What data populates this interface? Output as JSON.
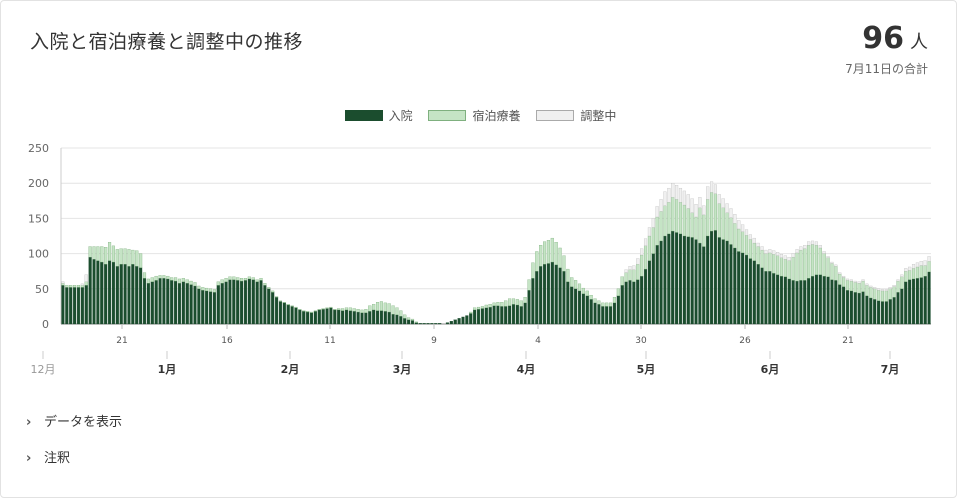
{
  "card": {
    "title": "入院と宿泊療養と調整中の推移",
    "total_value": "96",
    "total_unit": "人",
    "total_note": "7月11日の合計"
  },
  "legend": [
    {
      "label": "入院",
      "color": "#1b4d2e"
    },
    {
      "label": "宿泊療養",
      "color": "#c5e4c5"
    },
    {
      "label": "調整中",
      "color": "#f0f0f0"
    }
  ],
  "toggles": {
    "show_data": "データを表示",
    "notes": "注釈"
  },
  "chart_data": {
    "type": "bar",
    "stacked": true,
    "ylim": [
      0,
      250
    ],
    "yticks": [
      0,
      50,
      100,
      150,
      200,
      250
    ],
    "day_labels": [
      "21",
      "16",
      "11",
      "9",
      "4",
      "30",
      "26",
      "21"
    ],
    "month_labels": [
      "12月",
      "1月",
      "2月",
      "3月",
      "4月",
      "5月",
      "6月",
      "7月"
    ],
    "series": [
      {
        "name": "入院",
        "color": "#1b4d2e",
        "values": [
          55,
          52,
          52,
          52,
          52,
          52,
          55,
          95,
          92,
          90,
          88,
          85,
          90,
          88,
          82,
          85,
          85,
          82,
          85,
          82,
          80,
          65,
          58,
          60,
          62,
          65,
          65,
          64,
          62,
          61,
          58,
          60,
          58,
          56,
          54,
          50,
          48,
          47,
          46,
          45,
          55,
          58,
          60,
          63,
          63,
          62,
          61,
          62,
          64,
          63,
          60,
          62,
          55,
          50,
          45,
          38,
          32,
          30,
          27,
          25,
          23,
          20,
          18,
          17,
          16,
          18,
          20,
          21,
          22,
          23,
          20,
          20,
          19,
          20,
          19,
          18,
          17,
          16,
          16,
          18,
          20,
          19,
          19,
          18,
          17,
          14,
          13,
          11,
          8,
          6,
          5,
          2,
          1,
          1,
          1,
          1,
          1,
          1,
          0,
          2,
          4,
          6,
          8,
          10,
          12,
          15,
          20,
          21,
          22,
          23,
          24,
          26,
          26,
          25,
          25,
          26,
          28,
          27,
          25,
          30,
          48,
          65,
          75,
          82,
          85,
          86,
          88,
          84,
          80,
          75,
          60,
          53,
          50,
          47,
          43,
          40,
          35,
          30,
          28,
          25,
          25,
          25,
          30,
          40,
          55,
          60,
          62,
          60,
          63,
          68,
          78,
          90,
          100,
          112,
          118,
          125,
          128,
          132,
          130,
          128,
          125,
          124,
          123,
          120,
          115,
          110,
          125,
          132,
          133,
          123,
          120,
          118,
          113,
          108,
          103,
          101,
          98,
          93,
          90,
          85,
          80,
          75,
          75,
          72,
          70,
          68,
          67,
          64,
          62,
          61,
          62,
          62,
          65,
          68,
          70,
          70,
          68,
          67,
          63,
          62,
          56,
          53,
          48,
          47,
          45,
          44,
          46,
          40,
          37,
          35,
          33,
          32,
          32,
          35,
          38,
          45,
          50,
          60,
          63,
          64,
          65,
          66,
          68,
          74
        ]
      },
      {
        "name": "宿泊療養",
        "color": "#c5e4c5",
        "values": [
          3,
          3,
          3,
          3,
          3,
          3,
          5,
          15,
          18,
          20,
          22,
          24,
          26,
          23,
          24,
          22,
          22,
          24,
          20,
          22,
          20,
          8,
          6,
          6,
          6,
          4,
          4,
          4,
          4,
          5,
          6,
          5,
          5,
          5,
          5,
          4,
          4,
          4,
          4,
          4,
          5,
          5,
          5,
          4,
          4,
          4,
          4,
          3,
          3,
          3,
          3,
          3,
          3,
          2,
          2,
          1,
          1,
          1,
          1,
          1,
          1,
          1,
          1,
          1,
          1,
          1,
          1,
          1,
          1,
          1,
          1,
          2,
          3,
          3,
          4,
          4,
          4,
          4,
          5,
          8,
          8,
          12,
          13,
          12,
          12,
          12,
          10,
          8,
          5,
          3,
          2,
          1,
          0,
          0,
          0,
          0,
          0,
          0,
          0,
          0,
          0,
          0,
          0,
          0,
          0,
          2,
          3,
          3,
          3,
          4,
          4,
          4,
          5,
          6,
          8,
          10,
          8,
          8,
          8,
          8,
          15,
          22,
          28,
          30,
          32,
          33,
          34,
          32,
          28,
          22,
          18,
          13,
          12,
          10,
          8,
          7,
          6,
          6,
          5,
          5,
          5,
          5,
          8,
          10,
          12,
          13,
          15,
          17,
          22,
          30,
          33,
          35,
          37,
          40,
          42,
          43,
          45,
          48,
          47,
          45,
          44,
          40,
          35,
          32,
          50,
          45,
          52,
          55,
          52,
          48,
          45,
          40,
          38,
          35,
          32,
          30,
          28,
          27,
          25,
          25,
          25,
          25,
          26,
          27,
          27,
          26,
          25,
          26,
          33,
          40,
          43,
          45,
          47,
          45,
          42,
          38,
          32,
          27,
          23,
          20,
          15,
          13,
          14,
          14,
          14,
          14,
          15,
          15,
          15,
          15,
          15,
          15,
          15,
          15,
          15,
          16,
          17,
          15,
          13,
          15,
          16,
          17,
          15,
          15
        ]
      },
      {
        "name": "調整中",
        "color": "#f0f0f0",
        "values": [
          2,
          0,
          0,
          0,
          0,
          2,
          10,
          0,
          0,
          0,
          0,
          0,
          0,
          0,
          0,
          0,
          0,
          0,
          0,
          0,
          0,
          0,
          0,
          0,
          0,
          0,
          0,
          0,
          0,
          0,
          0,
          0,
          0,
          0,
          0,
          0,
          0,
          0,
          0,
          0,
          0,
          0,
          0,
          0,
          0,
          0,
          0,
          0,
          0,
          0,
          0,
          0,
          0,
          0,
          0,
          0,
          0,
          0,
          0,
          0,
          0,
          0,
          0,
          0,
          0,
          0,
          0,
          0,
          0,
          0,
          0,
          0,
          0,
          0,
          0,
          0,
          0,
          0,
          0,
          0,
          0,
          0,
          0,
          0,
          0,
          0,
          0,
          0,
          0,
          0,
          0,
          0,
          0,
          0,
          0,
          0,
          0,
          0,
          0,
          0,
          0,
          0,
          0,
          0,
          0,
          0,
          0,
          0,
          0,
          0,
          0,
          0,
          0,
          0,
          0,
          0,
          0,
          0,
          0,
          0,
          0,
          0,
          0,
          0,
          0,
          0,
          0,
          0,
          0,
          0,
          0,
          0,
          0,
          0,
          0,
          0,
          0,
          0,
          0,
          0,
          0,
          0,
          0,
          0,
          0,
          4,
          5,
          6,
          8,
          9,
          10,
          12,
          13,
          15,
          17,
          20,
          20,
          20,
          20,
          20,
          20,
          20,
          20,
          18,
          15,
          13,
          18,
          15,
          13,
          13,
          13,
          13,
          13,
          13,
          12,
          10,
          8,
          7,
          7,
          5,
          5,
          5,
          5,
          5,
          5,
          5,
          5,
          5,
          5,
          5,
          5,
          5,
          5,
          5,
          5,
          4,
          3,
          2,
          2,
          2,
          2,
          2,
          2,
          2,
          2,
          2,
          2,
          2,
          2,
          2,
          2,
          2,
          2,
          2,
          2,
          2,
          3,
          4,
          5,
          6,
          6,
          6,
          7,
          7
        ]
      }
    ]
  }
}
